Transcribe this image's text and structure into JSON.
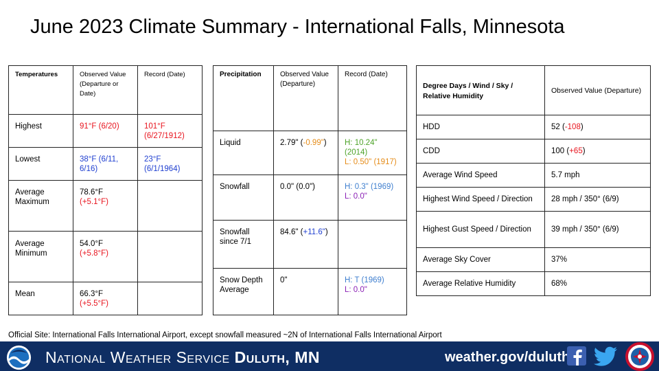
{
  "title": "June 2023 Climate Summary - International Falls, Minnesota",
  "temperatures": {
    "headers": [
      "Temperatures",
      "Observed Value (Departure or Date)",
      "Record (Date)"
    ],
    "rows": [
      {
        "label": "Highest",
        "observed": "91°F (6/20)",
        "record": "101°F (6/27/1912)"
      },
      {
        "label": "Lowest",
        "observed": "38°F (6/11, 6/16)",
        "record": "23°F (6/1/1964)"
      },
      {
        "label": "Average Maximum",
        "observed": "78.6°F",
        "observed_departure": "(+5.1°F)",
        "record": ""
      },
      {
        "label": "Average Minimum",
        "observed": "54.0°F",
        "observed_departure": "(+5.8°F)",
        "record": ""
      },
      {
        "label": "Mean",
        "observed": "66.3°F",
        "observed_departure": "(+5.5°F)",
        "record": ""
      }
    ]
  },
  "precipitation": {
    "headers": [
      "Precipitation",
      "Observed Value (Departure)",
      "Record (Date)"
    ],
    "rows": [
      {
        "label": "Liquid",
        "observed": "2.79\"",
        "departure": "-0.99\"",
        "record_high": "H: 10.24\" (2014)",
        "record_low": "L: 0.50\" (1917)"
      },
      {
        "label": "Snowfall",
        "observed": "0.0\" (0.0\")",
        "departure": "",
        "record_high": "H: 0.3\" (1969)",
        "record_low": "L: 0.0\""
      },
      {
        "label": "Snowfall since 7/1",
        "observed": "84.6\"",
        "departure": "+11.6\"",
        "record_high": "",
        "record_low": ""
      },
      {
        "label": "Snow Depth Average",
        "observed": "0\"",
        "departure": "",
        "record_high": "H: T (1969)",
        "record_low": "L: 0.0\""
      }
    ]
  },
  "degree_days": {
    "headers": [
      "Degree Days / Wind / Sky / Relative Humidity",
      "Observed Value (Departure)"
    ],
    "rows": [
      {
        "label": "HDD",
        "value": "52",
        "departure": "-108"
      },
      {
        "label": "CDD",
        "value": "100",
        "departure": "+65"
      },
      {
        "label": "Average Wind Speed",
        "value": "5.7 mph",
        "departure": ""
      },
      {
        "label": "Highest Wind Speed / Direction",
        "value": "28 mph / 350° (6/9)",
        "departure": ""
      },
      {
        "label": "Highest Gust Speed / Direction",
        "value": "39 mph / 350° (6/9)",
        "departure": ""
      },
      {
        "label": "Average Sky Cover",
        "value": "37%",
        "departure": ""
      },
      {
        "label": "Average Relative Humidity",
        "value": "68%",
        "departure": ""
      }
    ]
  },
  "footnote": "Official Site: International Falls International Airport, except snowfall measured ~2N of International Falls International Airport",
  "banner": {
    "nws_prefix": "National Weather Service",
    "office": "Duluth, MN",
    "website": "weather.gov/duluth",
    "background_color": "#0f2e63"
  },
  "icons": [
    "noaa-logo-icon",
    "facebook-icon",
    "twitter-icon",
    "nws-logo-icon"
  ]
}
